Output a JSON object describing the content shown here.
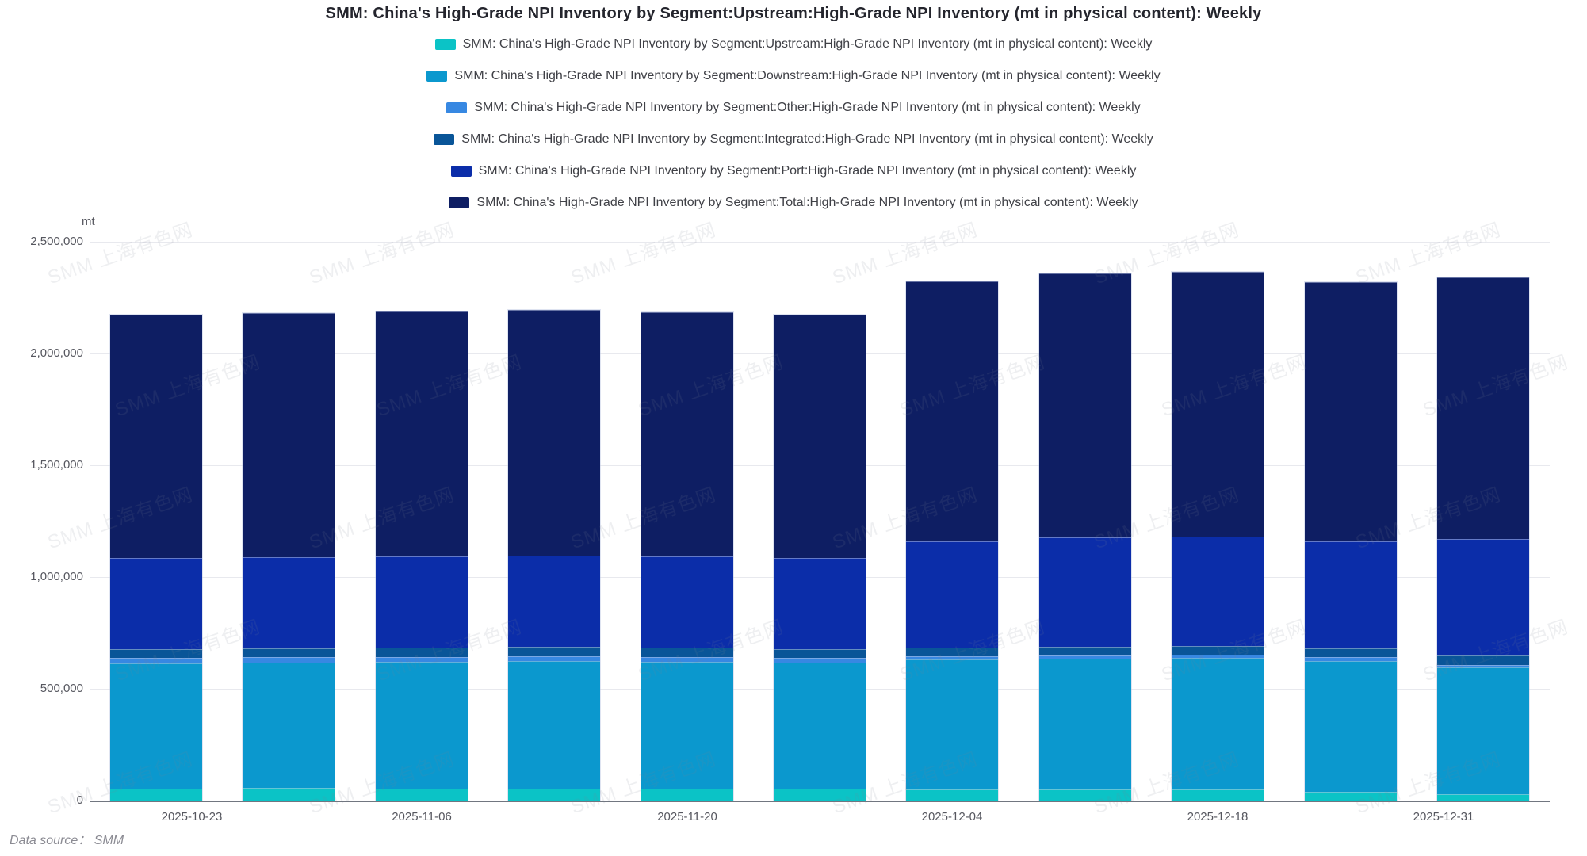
{
  "title": "SMM: China's High-Grade NPI Inventory by Segment:Upstream:High-Grade NPI Inventory (mt in physical content): Weekly",
  "unit_label": "mt",
  "footer": {
    "data_source_label": "Data source： SMM"
  },
  "watermark_text": "SMM 上海有色网",
  "colors": {
    "upstream": "#0bc3c6",
    "downstream": "#0b98ce",
    "other": "#3788e2",
    "integrated": "#095598",
    "port": "#0b2da9",
    "total": "#0e1e63",
    "gridline": "#e8e9ee",
    "axis_line": "#717680"
  },
  "legend": [
    {
      "key": "upstream",
      "color": "#0bc3c6",
      "label": "SMM: China's High-Grade NPI Inventory by Segment:Upstream:High-Grade NPI Inventory (mt in physical content): Weekly"
    },
    {
      "key": "downstream",
      "color": "#0b98ce",
      "label": "SMM: China's High-Grade NPI Inventory by Segment:Downstream:High-Grade NPI Inventory (mt in physical content): Weekly"
    },
    {
      "key": "other",
      "color": "#3788e2",
      "label": "SMM: China's High-Grade NPI Inventory by Segment:Other:High-Grade NPI Inventory (mt in physical content): Weekly"
    },
    {
      "key": "integrated",
      "color": "#095598",
      "label": "SMM: China's High-Grade NPI Inventory by Segment:Integrated:High-Grade NPI Inventory (mt in physical content): Weekly"
    },
    {
      "key": "port",
      "color": "#0b2da9",
      "label": "SMM: China's High-Grade NPI Inventory by Segment:Port:High-Grade NPI Inventory (mt in physical content): Weekly"
    },
    {
      "key": "total",
      "color": "#0e1e63",
      "label": "SMM: China's High-Grade NPI Inventory by Segment:Total:High-Grade NPI Inventory (mt in physical content): Weekly"
    }
  ],
  "chart_data": {
    "type": "bar",
    "stacked": true,
    "unit": "mt",
    "n_bars": 11,
    "bar_frequency": "weekly",
    "x_tick_labels": [
      "2025-10-23",
      "2025-11-06",
      "2025-11-20",
      "2025-12-04",
      "2025-12-18",
      "2025-12-31"
    ],
    "x_labeled_bar_indexes": [
      0,
      2,
      4,
      6,
      8,
      10
    ],
    "y_tick_labels": [
      "0",
      "500,000",
      "1,000,000",
      "1,500,000",
      "2,000,000",
      "2,500,000"
    ],
    "ylim": [
      0,
      2500000
    ],
    "grid": true,
    "legend_position": "top",
    "note": "Total series (= sum of the five segment series) is stacked on top of them, so the visual bar top equals 2x the Total inventory value.",
    "series": [
      {
        "name": "Upstream",
        "color": "#0bc3c6",
        "values": [
          55000,
          55000,
          55000,
          53000,
          53000,
          52000,
          50000,
          50000,
          50000,
          38000,
          30000
        ]
      },
      {
        "name": "Downstream",
        "color": "#0b98ce",
        "values": [
          560000,
          563000,
          567000,
          572000,
          568000,
          566000,
          580000,
          585000,
          590000,
          588000,
          564000
        ]
      },
      {
        "name": "Other",
        "color": "#3788e2",
        "values": [
          22000,
          22000,
          21000,
          22000,
          22000,
          21000,
          15000,
          13000,
          12000,
          15000,
          14000
        ]
      },
      {
        "name": "Integrated",
        "color": "#095598",
        "values": [
          40000,
          40000,
          40000,
          41000,
          40000,
          40000,
          41000,
          40000,
          40000,
          41000,
          40000
        ]
      },
      {
        "name": "Port",
        "color": "#0b2da9",
        "values": [
          410000,
          410000,
          411000,
          410000,
          409000,
          408000,
          475000,
          491000,
          491000,
          478000,
          522000
        ]
      },
      {
        "name": "Total",
        "color": "#0e1e63",
        "values": [
          1087000,
          1090000,
          1094000,
          1098000,
          1092000,
          1087000,
          1161000,
          1179000,
          1183000,
          1160000,
          1170000
        ]
      }
    ]
  }
}
